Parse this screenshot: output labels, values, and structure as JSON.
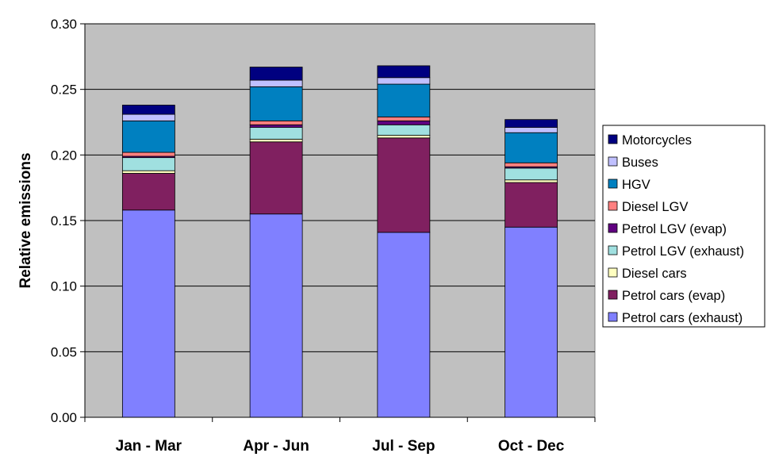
{
  "chart_data": {
    "type": "bar",
    "stacked": true,
    "title": "",
    "xlabel": "",
    "ylabel": "Relative emissions",
    "ylim": [
      0,
      0.3
    ],
    "yticks": [
      "0.00",
      "0.05",
      "0.10",
      "0.15",
      "0.20",
      "0.25",
      "0.30"
    ],
    "grid": true,
    "legend_position": "right",
    "plot_background": "#c0c0c0",
    "categories": [
      "Jan - Mar",
      "Apr - Jun",
      "Jul - Sep",
      "Oct - Dec"
    ],
    "series": [
      {
        "name": "Petrol cars (exhaust)",
        "color": "#8080ff",
        "values": [
          0.158,
          0.155,
          0.141,
          0.145
        ]
      },
      {
        "name": "Petrol cars (evap)",
        "color": "#802060",
        "values": [
          0.028,
          0.055,
          0.072,
          0.034
        ]
      },
      {
        "name": "Diesel cars",
        "color": "#ffffc0",
        "values": [
          0.002,
          0.002,
          0.002,
          0.002
        ]
      },
      {
        "name": "Petrol LGV (exhaust)",
        "color": "#a0e0e0",
        "values": [
          0.01,
          0.009,
          0.008,
          0.009
        ]
      },
      {
        "name": "Petrol LGV (evap)",
        "color": "#600080",
        "values": [
          0.001,
          0.002,
          0.003,
          0.001
        ]
      },
      {
        "name": "Diesel LGV",
        "color": "#ff8080",
        "values": [
          0.003,
          0.003,
          0.003,
          0.003
        ]
      },
      {
        "name": "HGV",
        "color": "#0080c0",
        "values": [
          0.024,
          0.026,
          0.025,
          0.023
        ]
      },
      {
        "name": "Buses",
        "color": "#c0c0ff",
        "values": [
          0.005,
          0.005,
          0.005,
          0.004
        ]
      },
      {
        "name": "Motorcycles",
        "color": "#000080",
        "values": [
          0.007,
          0.01,
          0.009,
          0.006
        ]
      }
    ]
  }
}
